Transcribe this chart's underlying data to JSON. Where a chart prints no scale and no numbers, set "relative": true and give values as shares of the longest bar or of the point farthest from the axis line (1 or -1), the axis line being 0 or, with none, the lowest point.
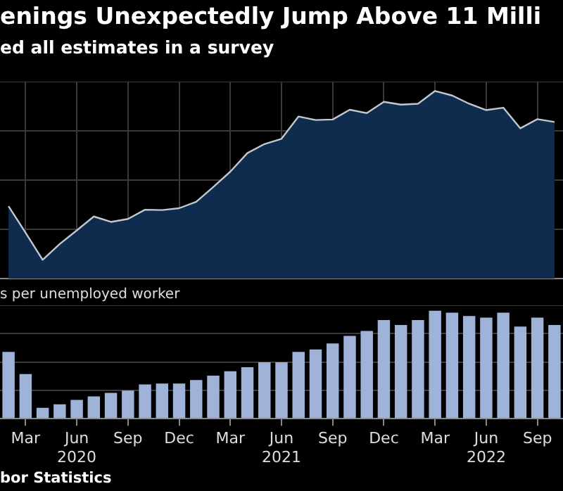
{
  "chart_data": [
    {
      "type": "area",
      "title": "enings Unexpectedly Jump Above 11 Milli",
      "subtitle": "ed all estimates in a survey",
      "relative": true,
      "grid": true,
      "tick_labels": false,
      "categories": [
        null,
        null,
        null,
        null,
        null,
        null,
        null,
        null,
        null,
        null,
        null,
        null,
        null,
        null,
        null,
        null,
        null,
        null,
        null,
        null,
        null,
        null,
        null,
        null,
        null,
        null,
        null,
        null,
        null,
        null,
        null,
        null,
        null
      ],
      "series": [
        {
          "color": "#0f2b4d",
          "values": [
            0.386,
            0.244,
            0.1,
            0.184,
            0.257,
            0.331,
            0.302,
            0.318,
            0.367,
            0.365,
            0.375,
            0.409,
            0.488,
            0.57,
            0.669,
            0.717,
            0.745,
            0.864,
            0.845,
            0.848,
            0.9,
            0.882,
            0.942,
            0.927,
            0.932,
            1,
            0.976,
            0.932,
            0.898,
            0.911,
            0.801,
            0.85,
            0.835
          ]
        }
      ]
    },
    {
      "type": "bar",
      "title": "s per unemployed worker",
      "relative": true,
      "grid": "y",
      "tick_labels": "x",
      "annotations": [
        "bor Statistics"
      ],
      "categories": [
        null,
        "Mar",
        null,
        null,
        "Jun\n2020",
        null,
        null,
        "Sep",
        null,
        null,
        "Dec",
        null,
        null,
        "Mar",
        null,
        null,
        "Jun\n2021",
        null,
        null,
        "Sep",
        null,
        null,
        "Dec",
        null,
        null,
        "Mar",
        null,
        null,
        "Jun\n2022",
        null,
        null,
        "Sep",
        null
      ],
      "series": [
        {
          "color": "#9fb3d9",
          "values": [
            0.619,
            0.413,
            0.101,
            0.133,
            0.174,
            0.206,
            0.239,
            0.261,
            0.317,
            0.326,
            0.326,
            0.358,
            0.399,
            0.44,
            0.477,
            0.523,
            0.523,
            0.619,
            0.642,
            0.697,
            0.766,
            0.812,
            0.913,
            0.867,
            0.913,
            1,
            0.982,
            0.95,
            0.936,
            0.982,
            0.853,
            0.936,
            0.867
          ]
        }
      ]
    }
  ]
}
